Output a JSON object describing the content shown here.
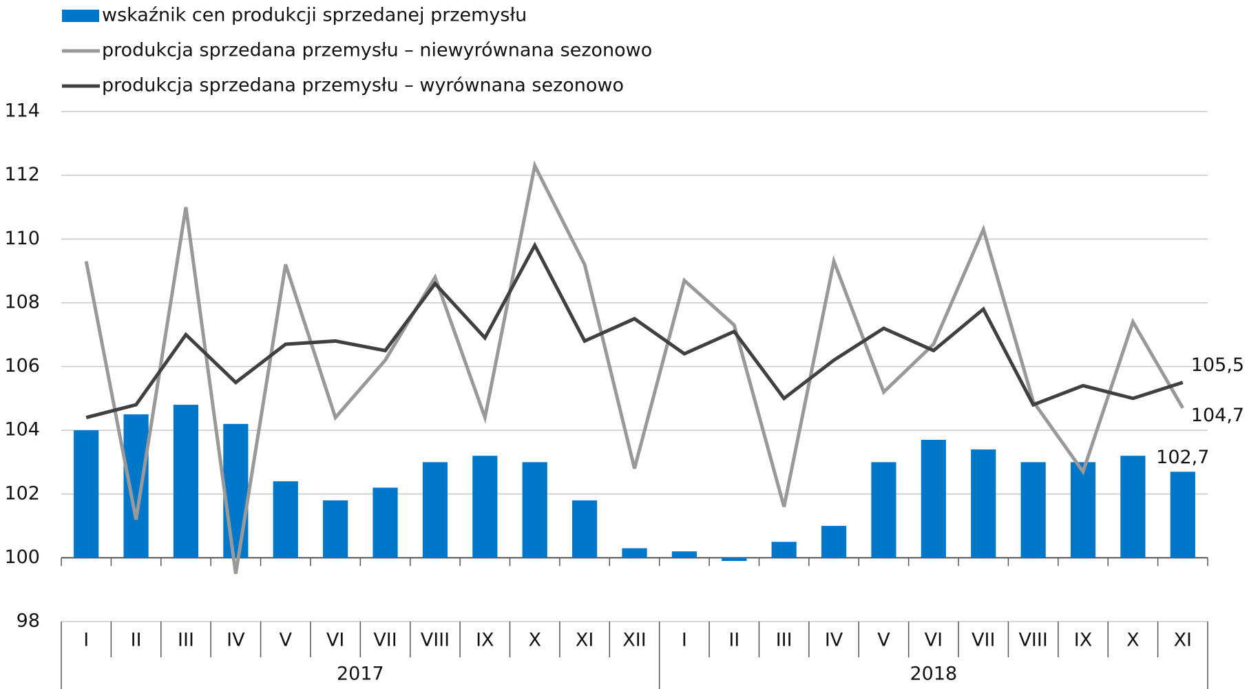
{
  "chart_data": {
    "type": "bar_line",
    "categories": [
      "I",
      "II",
      "III",
      "IV",
      "V",
      "VI",
      "VII",
      "VIII",
      "IX",
      "X",
      "XI",
      "XII",
      "I",
      "II",
      "III",
      "IV",
      "V",
      "VI",
      "VII",
      "VIII",
      "IX",
      "X",
      "XI"
    ],
    "years": [
      "2017",
      "2018"
    ],
    "series": [
      {
        "name": "wskaźnik cen produkcji sprzedanej przemysłu",
        "type": "bar",
        "color": "#0077c8",
        "values": [
          104.0,
          104.5,
          104.8,
          104.2,
          102.4,
          101.8,
          102.2,
          103.0,
          103.2,
          103.0,
          101.8,
          100.3,
          100.2,
          99.9,
          100.5,
          101.0,
          103.0,
          103.7,
          103.4,
          103.0,
          103.0,
          103.2,
          102.7
        ],
        "value_labels": [
          null,
          null,
          null,
          null,
          null,
          null,
          null,
          null,
          null,
          null,
          null,
          null,
          null,
          null,
          null,
          null,
          null,
          null,
          null,
          null,
          null,
          null,
          "102,7"
        ]
      },
      {
        "name": "produkcja sprzedana przemysłu – niewyrównana sezonowo",
        "type": "line",
        "color": "#999999",
        "values": [
          109.3,
          101.2,
          111.0,
          99.5,
          109.2,
          104.4,
          106.2,
          108.8,
          104.4,
          112.3,
          109.2,
          102.8,
          108.7,
          107.3,
          101.6,
          109.3,
          105.2,
          106.7,
          110.3,
          104.9,
          102.7,
          107.4,
          104.7
        ],
        "value_labels": [
          null,
          null,
          null,
          null,
          null,
          null,
          null,
          null,
          null,
          null,
          null,
          null,
          null,
          null,
          null,
          null,
          null,
          null,
          null,
          null,
          null,
          null,
          "104,7"
        ]
      },
      {
        "name": "produkcja sprzedana przemysłu –  wyrównana sezonowo",
        "type": "line",
        "color": "#404040",
        "values": [
          104.4,
          104.8,
          107.0,
          105.5,
          106.7,
          106.8,
          106.5,
          108.6,
          106.9,
          109.8,
          106.8,
          107.5,
          106.4,
          107.1,
          105.0,
          106.2,
          107.2,
          106.5,
          107.8,
          104.8,
          105.4,
          105.0,
          105.5
        ],
        "value_labels": [
          null,
          null,
          null,
          null,
          null,
          null,
          null,
          null,
          null,
          null,
          null,
          null,
          null,
          null,
          null,
          null,
          null,
          null,
          null,
          null,
          null,
          null,
          "105,5"
        ]
      }
    ],
    "ylim": [
      98,
      114
    ],
    "yticks": [
      98,
      100,
      102,
      104,
      106,
      108,
      110,
      112,
      114
    ],
    "x_axis_crosses": 100,
    "grid": true,
    "legend": "top-left"
  }
}
